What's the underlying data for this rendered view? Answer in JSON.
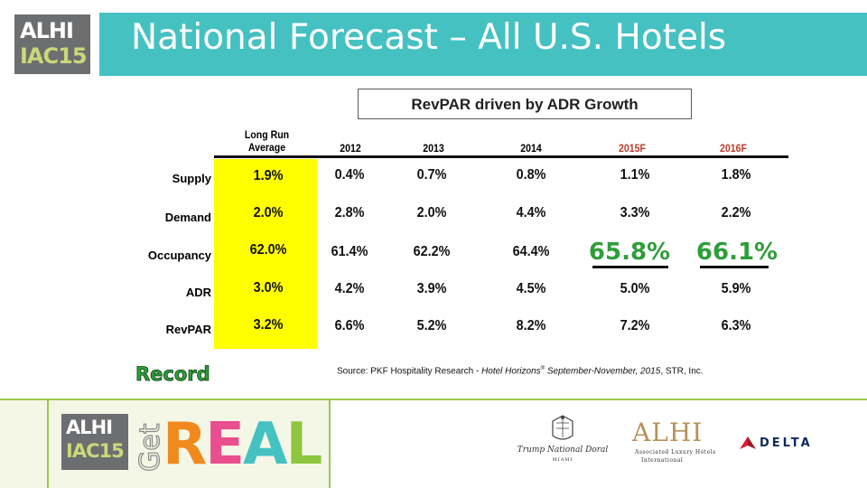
{
  "header": {
    "logo_line1": "ALHI",
    "logo_line2": "IAC15",
    "title": "National Forecast – All U.S. Hotels"
  },
  "subtitle": "RevPAR driven by ADR Growth",
  "table": {
    "columns": [
      "Long Run Average",
      "2012",
      "2013",
      "2014",
      "2015F",
      "2016F"
    ],
    "long_run_line1": "Long Run",
    "long_run_line2": "Average",
    "forecast_columns_color": "#c0392b",
    "highlight_color": "#ffff00",
    "rows": [
      {
        "label": "Supply",
        "values": [
          "1.9%",
          "0.4%",
          "0.7%",
          "0.8%",
          "1.1%",
          "1.8%"
        ]
      },
      {
        "label": "Demand",
        "values": [
          "2.0%",
          "2.8%",
          "2.0%",
          "4.4%",
          "3.3%",
          "2.2%"
        ]
      },
      {
        "label": "Occupancy",
        "values": [
          "62.0%",
          "61.4%",
          "62.2%",
          "64.4%",
          "65.8%",
          "66.1%"
        ]
      },
      {
        "label": "ADR",
        "values": [
          "3.0%",
          "4.2%",
          "3.9%",
          "4.5%",
          "5.0%",
          "5.9%"
        ]
      },
      {
        "label": "RevPAR",
        "values": [
          "3.2%",
          "6.6%",
          "5.2%",
          "8.2%",
          "7.2%",
          "6.3%"
        ]
      }
    ]
  },
  "record_label": "Record",
  "record_color": "#2e9e3a",
  "source": {
    "prefix": "Source: PKF Hospitality Research - ",
    "italic": "Hotel Horizons",
    "reg": "®",
    "italic2": " September-November, 2015",
    "suffix": ", STR, Inc."
  },
  "footer": {
    "logo_line1": "ALHI",
    "logo_line2": "IAC15",
    "get_text": "Get",
    "real_letters": [
      {
        "char": "R",
        "color": "#f08a1e"
      },
      {
        "char": "E",
        "color": "#e94e8f"
      },
      {
        "char": "A",
        "color": "#45c1c2"
      },
      {
        "char": "L",
        "color": "#8dc63f"
      }
    ],
    "trump_name": "Trump National Doral",
    "trump_city": "MIAMI",
    "alhi_word": "ALHI",
    "alhi_sub1": "Associated Luxury Hotels",
    "alhi_sub2": "International",
    "delta_word": "DELTA"
  }
}
